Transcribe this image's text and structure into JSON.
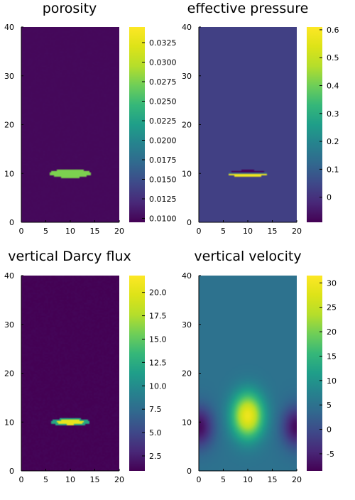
{
  "chart_data": [
    {
      "type": "heatmap",
      "title": "porosity",
      "x_ticks": [
        "0",
        "5",
        "10",
        "15",
        "20"
      ],
      "y_ticks": [
        "0",
        "10",
        "20",
        "30",
        "40"
      ],
      "xlim": [
        0,
        20
      ],
      "ylim": [
        0,
        40
      ],
      "colorbar": {
        "min": 0.0095,
        "max": 0.0345,
        "ticks": [
          "0.0100",
          "0.0125",
          "0.0150",
          "0.0175",
          "0.0200",
          "0.0225",
          "0.0250",
          "0.0275",
          "0.0300",
          "0.0325"
        ]
      },
      "field": {
        "background": 0.01,
        "inclusion": {
          "x_center": 10,
          "y_center": 10,
          "x_halfwidth": 4.2,
          "y_halfwidth": 0.9,
          "value": 0.0275
        }
      }
    },
    {
      "type": "heatmap",
      "title": "effective pressure",
      "x_ticks": [
        "0",
        "5",
        "10",
        "15",
        "20"
      ],
      "y_ticks": [
        "0",
        "10",
        "20",
        "30",
        "40"
      ],
      "xlim": [
        0,
        20
      ],
      "ylim": [
        0,
        40
      ],
      "colorbar": {
        "min": -0.09,
        "max": 0.61,
        "ticks": [
          "0",
          "0.1",
          "0.2",
          "0.3",
          "0.4",
          "0.5",
          "0.6"
        ]
      },
      "field": {
        "background": 0.03,
        "inclusion": {
          "x_center": 10,
          "y_center": 10,
          "x_halfwidth": 4.0,
          "y_halfwidth": 0.7,
          "top_value": -0.08,
          "bottom_value": 0.58
        }
      }
    },
    {
      "type": "heatmap",
      "title": "vertical Darcy flux",
      "x_ticks": [
        "0",
        "5",
        "10",
        "15",
        "20"
      ],
      "y_ticks": [
        "0",
        "10",
        "20",
        "30",
        "40"
      ],
      "xlim": [
        0,
        20
      ],
      "ylim": [
        0,
        40
      ],
      "colorbar": {
        "min": 0.9,
        "max": 21.8,
        "ticks": [
          "2.5",
          "5.0",
          "7.5",
          "10.0",
          "12.5",
          "15.0",
          "17.5",
          "20.0"
        ]
      },
      "field": {
        "background": 1.0,
        "inclusion": {
          "x_center": 10,
          "y_center": 10,
          "x_halfwidth": 4.0,
          "y_halfwidth": 0.8,
          "edge_value": 12.0,
          "core_value": 20.5
        }
      }
    },
    {
      "type": "heatmap",
      "title": "vertical velocity",
      "x_ticks": [
        "0",
        "5",
        "10",
        "15",
        "20"
      ],
      "y_ticks": [
        "0",
        "10",
        "20",
        "30",
        "40"
      ],
      "xlim": [
        0,
        20
      ],
      "ylim": [
        0,
        40
      ],
      "colorbar": {
        "min": -8.5,
        "max": 31.5,
        "ticks": [
          "-5",
          "0",
          "5",
          "10",
          "15",
          "20",
          "25",
          "30"
        ]
      },
      "field": {
        "far_value": 5.0,
        "peak": {
          "x_center": 10,
          "y_center": 11.3,
          "value": 29.5
        },
        "side_minima": [
          {
            "x_center": 0,
            "y_center": 9,
            "value": -7.5
          },
          {
            "x_center": 20,
            "y_center": 9,
            "value": -7.5
          }
        ]
      }
    }
  ]
}
